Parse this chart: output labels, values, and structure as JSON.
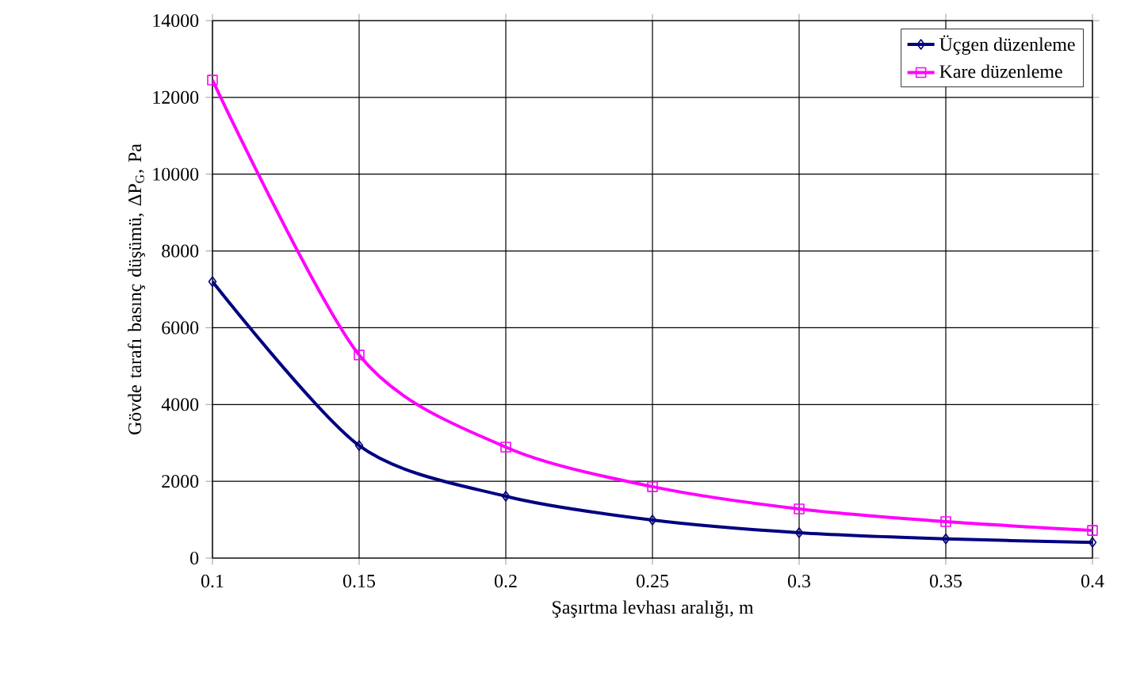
{
  "chart_data": {
    "type": "line",
    "xlabel": "Şaşırtma levhası aralığı, m",
    "ylabel": "Gövde tarafı basınç düşümü, ΔP$_{G}$, Pa",
    "x": [
      0.1,
      0.15,
      0.2,
      0.25,
      0.3,
      0.35,
      0.4
    ],
    "series": [
      {
        "name": "Üçgen düzenleme",
        "color": "#000080",
        "marker": "diamond",
        "values": [
          7200,
          2930,
          1610,
          990,
          660,
          500,
          410
        ]
      },
      {
        "name": "Kare düzenleme",
        "color": "#ff00ff",
        "marker": "square",
        "values": [
          12450,
          5290,
          2890,
          1860,
          1280,
          950,
          720
        ]
      }
    ],
    "xlim": [
      0.1,
      0.4
    ],
    "xticks": [
      0.1,
      0.15,
      0.2,
      0.25,
      0.3,
      0.35,
      0.4
    ],
    "ylim": [
      0,
      14000
    ],
    "yticks": [
      0,
      2000,
      4000,
      6000,
      8000,
      10000,
      12000,
      14000
    ],
    "grid": true,
    "legend": "top right",
    "line_style": "solid"
  }
}
